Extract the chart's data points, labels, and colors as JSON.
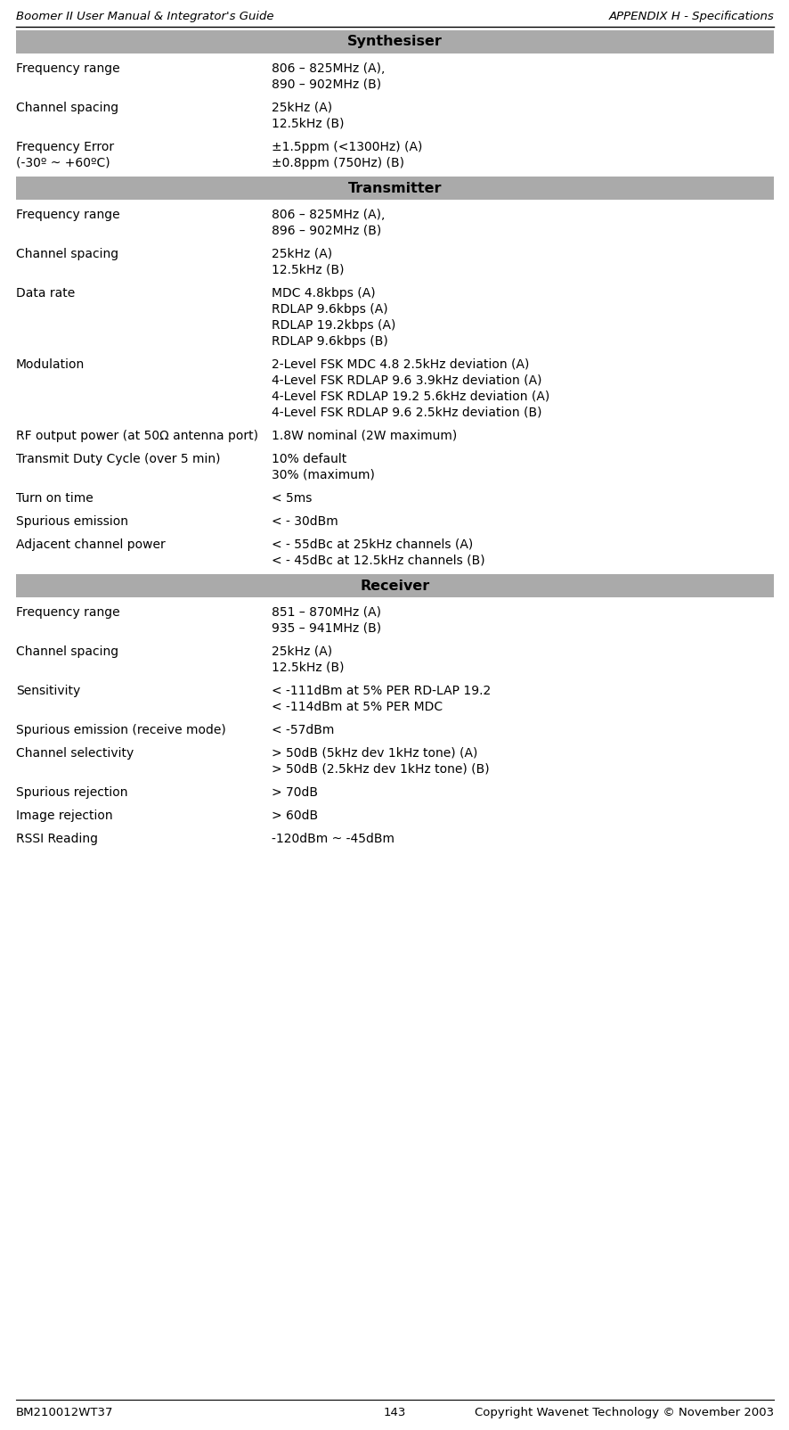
{
  "header_left": "Boomer II User Manual & Integrator's Guide",
  "header_right": "APPENDIX H - Specifications",
  "footer_left": "BM210012WT37",
  "footer_center": "143",
  "footer_right": "Copyright Wavenet Technology © November 2003",
  "section_bg": "#aaaaaa",
  "page_bg": "#ffffff",
  "text_color": "#000000",
  "sections": [
    {
      "title": "Synthesiser",
      "rows": [
        {
          "label": "Frequency range",
          "label2": "",
          "values": [
            "806 – 825MHz (A),",
            "890 – 902MHz (B)"
          ]
        },
        {
          "label": "Channel spacing",
          "label2": "",
          "values": [
            "25kHz (A)",
            "12.5kHz (B)"
          ]
        },
        {
          "label": "Frequency Error",
          "label2": "(-30º ~ +60ºC)",
          "values": [
            "±1.5ppm (<1300Hz) (A)",
            "±0.8ppm (750Hz) (B)"
          ]
        }
      ]
    },
    {
      "title": "Transmitter",
      "rows": [
        {
          "label": "Frequency range",
          "label2": "",
          "values": [
            "806 – 825MHz (A),",
            "896 – 902MHz (B)"
          ]
        },
        {
          "label": "Channel spacing",
          "label2": "",
          "values": [
            "25kHz (A)",
            "12.5kHz (B)"
          ]
        },
        {
          "label": "Data rate",
          "label2": "",
          "values": [
            "MDC 4.8kbps (A)",
            "RDLAP 9.6kbps (A)",
            "RDLAP 19.2kbps (A)",
            "RDLAP 9.6kbps (B)"
          ]
        },
        {
          "label": "Modulation",
          "label2": "",
          "values": [
            "2-Level FSK MDC 4.8 2.5kHz deviation (A)",
            "4-Level FSK RDLAP 9.6 3.9kHz deviation (A)",
            "4-Level FSK RDLAP 19.2 5.6kHz deviation (A)",
            "4-Level FSK RDLAP 9.6 2.5kHz deviation (B)"
          ]
        },
        {
          "label": "RF output power (at 50Ω antenna port)",
          "label2": "",
          "values": [
            "1.8W nominal (2W maximum)"
          ]
        },
        {
          "label": "Transmit Duty Cycle (over 5 min)",
          "label2": "",
          "values": [
            "10% default",
            "30% (maximum)"
          ]
        },
        {
          "label": "Turn on time",
          "label2": "",
          "values": [
            "< 5ms"
          ]
        },
        {
          "label": "Spurious emission",
          "label2": "",
          "values": [
            "< - 30dBm"
          ]
        },
        {
          "label": "Adjacent channel power",
          "label2": "",
          "values": [
            "< - 55dBc at 25kHz channels (A)",
            "< - 45dBc at 12.5kHz channels (B)"
          ]
        }
      ]
    },
    {
      "title": "Receiver",
      "rows": [
        {
          "label": "Frequency range",
          "label2": "",
          "values": [
            "851 – 870MHz (A)",
            "935 – 941MHz (B)"
          ]
        },
        {
          "label": "Channel spacing",
          "label2": "",
          "values": [
            "25kHz (A)",
            "12.5kHz (B)"
          ]
        },
        {
          "label": "Sensitivity",
          "label2": "",
          "values": [
            "< -111dBm at 5% PER RD-LAP 19.2",
            "< -114dBm at 5% PER MDC"
          ]
        },
        {
          "label": "Spurious emission (receive mode)",
          "label2": "",
          "values": [
            "< -57dBm"
          ]
        },
        {
          "label": "Channel selectivity",
          "label2": "",
          "values": [
            "> 50dB (5kHz dev 1kHz tone) (A)",
            "> 50dB (2.5kHz dev 1kHz tone) (B)"
          ]
        },
        {
          "label": "Spurious rejection",
          "label2": "",
          "values": [
            "> 70dB"
          ]
        },
        {
          "label": "Image rejection",
          "label2": "",
          "values": [
            "> 60dB"
          ]
        },
        {
          "label": "RSSI Reading",
          "label2": "",
          "values": [
            "-120dBm ~ -45dBm"
          ]
        }
      ]
    }
  ]
}
